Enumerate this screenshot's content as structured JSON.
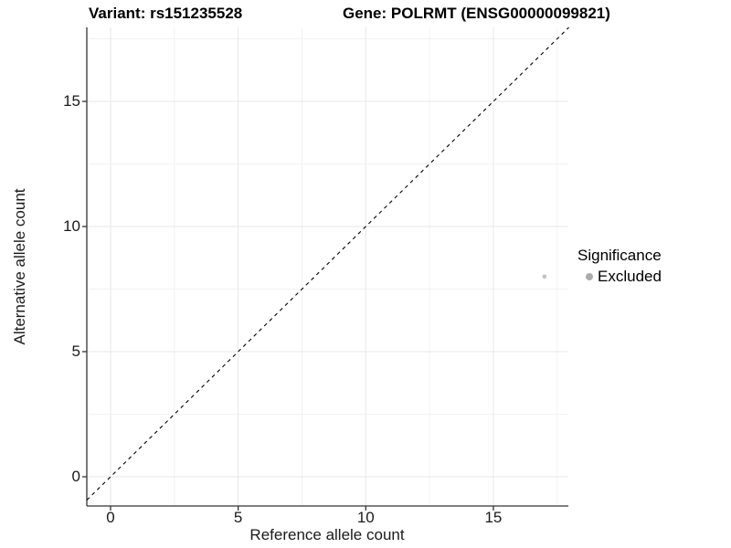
{
  "chart_data": {
    "type": "scatter",
    "title_left": "Variant: rs151235528",
    "title_right": "Gene: POLRMT (ENSG00000099821)",
    "xlabel": "Reference allele count",
    "ylabel": "Alternative allele count",
    "x_ticks": [
      0,
      5,
      10,
      15
    ],
    "y_ticks": [
      0,
      5,
      10,
      15
    ],
    "x_minor_ticks": [
      2.5,
      7.5,
      12.5,
      17.5
    ],
    "y_minor_ticks": [
      2.5,
      7.5,
      12.5,
      17.5
    ],
    "xlim": [
      -0.93,
      18.0
    ],
    "ylim": [
      -1.15,
      17.96
    ],
    "grid": true,
    "reference_line": {
      "type": "identity",
      "style": "dashed",
      "color": "#000000"
    },
    "series": [
      {
        "name": "Excluded",
        "points": [
          {
            "x": 17,
            "y": 8
          }
        ],
        "color": "#c2c2c2",
        "point_radius": 2.3
      }
    ],
    "legend": {
      "title": "Significance",
      "position": "right",
      "items": [
        {
          "label": "Excluded",
          "color": "#ababab",
          "key_radius": 4
        }
      ]
    },
    "colors": {
      "grid_major": "#e7e7e7",
      "grid_minor": "#f2f2f2",
      "axis_line": "#333333",
      "tick_mark": "#333333",
      "background": "#ffffff"
    }
  }
}
